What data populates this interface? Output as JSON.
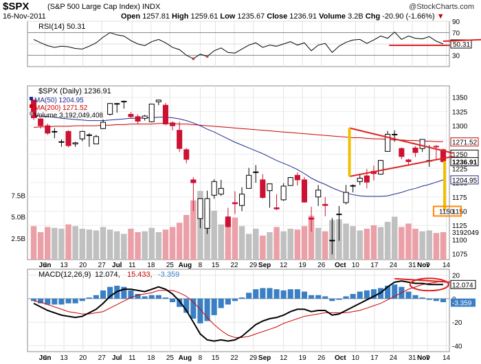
{
  "header": {
    "ticker": "$SPX",
    "name": "(S&P 500 Large Cap Index) INDX",
    "date": "16-Nov-2011",
    "source": "@StockCharts.com",
    "open_label": "Open",
    "open": "1257.81",
    "high_label": "High",
    "high": "1259.61",
    "low_label": "Low",
    "low": "1235.67",
    "close_label": "Close",
    "close": "1236.91",
    "volume_label": "Volume",
    "volume": "3.2B",
    "chg_label": "Chg",
    "chg": "-20.90 (-1.66%)",
    "chg_arrow": "▼"
  },
  "colors": {
    "up_candle": "#ffffff",
    "down_candle": "#cc1133",
    "candle_outline": "#000000",
    "ma50": "#1c2a8c",
    "ma200": "#cc0000",
    "volume_up": "#c0c0c0",
    "volume_down": "#eba0a8",
    "macd_line": "#000000",
    "signal_line": "#cc0000",
    "histogram": "#3a7fc4",
    "annotation_red": "#e02020",
    "annotation_yellow": "#f0c000",
    "annotation_orange": "#ff8800"
  },
  "chart_data": [
    {
      "type": "line",
      "panel": "rsi",
      "legend": "RSI(14) 50.31",
      "ylim": [
        10,
        90
      ],
      "y_ticks": [
        "90",
        "70",
        "50",
        "30"
      ],
      "tag": "50.31",
      "x": [
        "Jun 1",
        "Jun 3",
        "Jun 7",
        "Jun 9",
        "Jun 13",
        "Jun 15",
        "Jun 17",
        "Jun 21",
        "Jun 23",
        "Jun 27",
        "Jun 29",
        "Jul 1",
        "Jul 6",
        "Jul 8",
        "Jul 12",
        "Jul 14",
        "Jul 18",
        "Jul 20",
        "Jul 22",
        "Jul 26",
        "Jul 28",
        "Aug 1",
        "Aug 3",
        "Aug 5",
        "Aug 9",
        "Aug 11",
        "Aug 15",
        "Aug 17",
        "Aug 19",
        "Aug 23",
        "Aug 25",
        "Aug 29",
        "Aug 31",
        "Sep 2",
        "Sep 7",
        "Sep 9",
        "Sep 13",
        "Sep 15",
        "Sep 19",
        "Sep 21",
        "Sep 23",
        "Sep 27",
        "Sep 29",
        "Oct 3",
        "Oct 5",
        "Oct 7",
        "Oct 11",
        "Oct 13",
        "Oct 17",
        "Oct 19",
        "Oct 21",
        "Oct 25",
        "Oct 27",
        "Oct 31",
        "Nov 2",
        "Nov 4",
        "Nov 8",
        "Nov 10",
        "Nov 14",
        "Nov 16"
      ],
      "series": [
        {
          "values": [
            58,
            52,
            47,
            44,
            46,
            45,
            42,
            41,
            46,
            52,
            62,
            70,
            66,
            64,
            56,
            50,
            47,
            54,
            58,
            52,
            44,
            40,
            30,
            24,
            32,
            28,
            38,
            43,
            35,
            34,
            41,
            48,
            52,
            44,
            48,
            46,
            50,
            54,
            48,
            52,
            38,
            48,
            51,
            35,
            46,
            53,
            57,
            58,
            51,
            57,
            64,
            60,
            71,
            58,
            64,
            60,
            59,
            63,
            55,
            50
          ]
        }
      ]
    },
    {
      "type": "candlestick",
      "panel": "price",
      "legend": [
        "$SPX (Daily) 1236.91",
        "MA(50) 1204.95",
        "MA(200) 1271.52",
        "Volume 3,192,049,408"
      ],
      "ylim": [
        1065,
        1370
      ],
      "y_ticks": [
        "1350",
        "1325",
        "1300",
        "1275",
        "1250",
        "1225",
        "1200",
        "1175",
        "1150",
        "1125",
        "1100",
        "1075"
      ],
      "volume_ticks": [
        "7.5B",
        "5.0B",
        "2.5B"
      ],
      "tags": {
        "ma200": "1271.52",
        "close": "1236.91",
        "ma50": "1204.95",
        "target": "1150",
        "c1250": "1250",
        "vol": "3192049"
      },
      "x": [
        "Jun 1",
        "Jun 3",
        "Jun 7",
        "Jun 9",
        "Jun 13",
        "Jun 15",
        "Jun 17",
        "Jun 21",
        "Jun 23",
        "Jun 27",
        "Jun 29",
        "Jul 1",
        "Jul 6",
        "Jul 8",
        "Jul 12",
        "Jul 14",
        "Jul 18",
        "Jul 20",
        "Jul 22",
        "Jul 26",
        "Jul 28",
        "Aug 1",
        "Aug 3",
        "Aug 5",
        "Aug 9",
        "Aug 11",
        "Aug 15",
        "Aug 17",
        "Aug 19",
        "Aug 23",
        "Aug 25",
        "Aug 29",
        "Aug 31",
        "Sep 2",
        "Sep 7",
        "Sep 9",
        "Sep 13",
        "Sep 15",
        "Sep 19",
        "Sep 21",
        "Sep 23",
        "Sep 27",
        "Sep 29",
        "Oct 3",
        "Oct 5",
        "Oct 7",
        "Oct 11",
        "Oct 13",
        "Oct 17",
        "Oct 19",
        "Oct 21",
        "Oct 25",
        "Oct 27",
        "Oct 31",
        "Nov 2",
        "Nov 4",
        "Nov 8",
        "Nov 10",
        "Nov 14",
        "Nov 16"
      ],
      "open": [
        1345,
        1312,
        1300,
        1290,
        1272,
        1290,
        1268,
        1277,
        1283,
        1268,
        1295,
        1320,
        1338,
        1343,
        1320,
        1316,
        1313,
        1307,
        1342,
        1336,
        1305,
        1292,
        1258,
        1205,
        1137,
        1120,
        1178,
        1180,
        1140,
        1165,
        1160,
        1190,
        1218,
        1205,
        1186,
        1156,
        1170,
        1195,
        1213,
        1205,
        1138,
        1175,
        1162,
        1099,
        1145,
        1165,
        1194,
        1202,
        1212,
        1220,
        1215,
        1255,
        1284,
        1260,
        1240,
        1261,
        1260,
        1239,
        1264,
        1258
      ],
      "high": [
        1346,
        1313,
        1304,
        1296,
        1276,
        1292,
        1272,
        1291,
        1287,
        1284,
        1311,
        1340,
        1340,
        1344,
        1324,
        1320,
        1319,
        1338,
        1346,
        1340,
        1308,
        1307,
        1261,
        1210,
        1172,
        1186,
        1206,
        1205,
        1156,
        1185,
        1192,
        1226,
        1231,
        1215,
        1198,
        1180,
        1199,
        1210,
        1218,
        1210,
        1158,
        1196,
        1175,
        1138,
        1159,
        1196,
        1197,
        1216,
        1224,
        1230,
        1240,
        1291,
        1292,
        1262,
        1242,
        1264,
        1276,
        1266,
        1266,
        1260
      ],
      "low": [
        1310,
        1295,
        1284,
        1278,
        1263,
        1262,
        1263,
        1273,
        1263,
        1268,
        1294,
        1318,
        1323,
        1330,
        1313,
        1303,
        1309,
        1306,
        1336,
        1301,
        1292,
        1254,
        1234,
        1150,
        1120,
        1110,
        1172,
        1177,
        1121,
        1145,
        1150,
        1190,
        1200,
        1172,
        1156,
        1152,
        1168,
        1195,
        1195,
        1165,
        1114,
        1159,
        1141,
        1074,
        1098,
        1162,
        1183,
        1196,
        1190,
        1204,
        1214,
        1255,
        1272,
        1241,
        1230,
        1245,
        1254,
        1228,
        1241,
        1235
      ],
      "close": [
        1314,
        1300,
        1287,
        1290,
        1272,
        1265,
        1270,
        1290,
        1284,
        1281,
        1306,
        1339,
        1339,
        1343,
        1316,
        1308,
        1317,
        1338,
        1345,
        1303,
        1300,
        1260,
        1241,
        1200,
        1172,
        1172,
        1202,
        1190,
        1123,
        1163,
        1180,
        1213,
        1219,
        1174,
        1198,
        1154,
        1194,
        1209,
        1205,
        1166,
        1136,
        1187,
        1160,
        1099,
        1145,
        1183,
        1195,
        1208,
        1201,
        1216,
        1239,
        1285,
        1285,
        1246,
        1237,
        1253,
        1276,
        1239,
        1263,
        1237
      ],
      "volume": [
        3.9,
        3.2,
        3.8,
        3.7,
        3.6,
        4.1,
        3.9,
        3.6,
        3.5,
        3.4,
        3.8,
        3.5,
        3.3,
        3.0,
        3.6,
        3.2,
        3.3,
        3.7,
        3.2,
        3.5,
        3.8,
        4.3,
        5.2,
        6.9,
        8.0,
        6.1,
        5.7,
        4.1,
        4.6,
        4.9,
        3.9,
        3.0,
        3.6,
        2.8,
        3.2,
        3.8,
        3.3,
        3.6,
        3.5,
        3.9,
        5.1,
        3.7,
        3.3,
        4.6,
        4.7,
        4.2,
        3.9,
        3.4,
        3.6,
        4.0,
        3.8,
        4.4,
        5.0,
        3.8,
        4.2,
        3.6,
        3.3,
        3.4,
        3.1,
        3.2
      ],
      "ma50": [
        1318,
        1317,
        1316,
        1315,
        1313,
        1312,
        1311,
        1310,
        1309,
        1309,
        1309,
        1310,
        1311,
        1312,
        1313,
        1313,
        1314,
        1314,
        1315,
        1315,
        1314,
        1312,
        1309,
        1305,
        1300,
        1294,
        1289,
        1283,
        1277,
        1271,
        1266,
        1261,
        1256,
        1251,
        1245,
        1239,
        1234,
        1229,
        1223,
        1216,
        1208,
        1202,
        1197,
        1191,
        1186,
        1182,
        1179,
        1177,
        1176,
        1176,
        1176,
        1177,
        1180,
        1183,
        1187,
        1190,
        1194,
        1197,
        1201,
        1205
      ],
      "ma200": [
        1297,
        1298,
        1298,
        1299,
        1299,
        1299,
        1300,
        1300,
        1300,
        1300,
        1301,
        1301,
        1302,
        1302,
        1303,
        1303,
        1303,
        1303,
        1304,
        1304,
        1304,
        1303,
        1303,
        1302,
        1301,
        1300,
        1299,
        1298,
        1297,
        1296,
        1295,
        1294,
        1293,
        1292,
        1291,
        1290,
        1289,
        1288,
        1287,
        1286,
        1285,
        1284,
        1283,
        1282,
        1281,
        1280,
        1279,
        1279,
        1278,
        1277,
        1277,
        1276,
        1275,
        1275,
        1274,
        1274,
        1273,
        1273,
        1272,
        1272
      ]
    },
    {
      "type": "line",
      "panel": "macd",
      "legend": [
        "MACD(12,26,9)",
        "12.074",
        "15.433",
        "-3.359"
      ],
      "ylim": [
        -45,
        25
      ],
      "y_ticks": [
        "20",
        "0",
        "-20",
        "-40"
      ],
      "tags": {
        "macd": "12.074",
        "hist": "-3.359"
      },
      "x": [
        "Jun 1",
        "Jun 3",
        "Jun 7",
        "Jun 9",
        "Jun 13",
        "Jun 15",
        "Jun 17",
        "Jun 21",
        "Jun 23",
        "Jun 27",
        "Jun 29",
        "Jul 1",
        "Jul 6",
        "Jul 8",
        "Jul 12",
        "Jul 14",
        "Jul 18",
        "Jul 20",
        "Jul 22",
        "Jul 26",
        "Jul 28",
        "Aug 1",
        "Aug 3",
        "Aug 5",
        "Aug 9",
        "Aug 11",
        "Aug 15",
        "Aug 17",
        "Aug 19",
        "Aug 23",
        "Aug 25",
        "Aug 29",
        "Aug 31",
        "Sep 2",
        "Sep 7",
        "Sep 9",
        "Sep 13",
        "Sep 15",
        "Sep 19",
        "Sep 21",
        "Sep 23",
        "Sep 27",
        "Sep 29",
        "Oct 3",
        "Oct 5",
        "Oct 7",
        "Oct 11",
        "Oct 13",
        "Oct 17",
        "Oct 19",
        "Oct 21",
        "Oct 25",
        "Oct 27",
        "Oct 31",
        "Nov 2",
        "Nov 4",
        "Nov 8",
        "Nov 10",
        "Nov 14",
        "Nov 16"
      ],
      "series": [
        {
          "name": "MACD",
          "values": [
            -4,
            -7,
            -10,
            -12,
            -14,
            -15,
            -16,
            -15,
            -12,
            -9,
            -4,
            2,
            6,
            8,
            8,
            7,
            6,
            8,
            10,
            8,
            4,
            -2,
            -10,
            -20,
            -30,
            -35,
            -36,
            -35,
            -36,
            -35,
            -32,
            -27,
            -22,
            -19,
            -17,
            -16,
            -14,
            -11,
            -9,
            -9,
            -11,
            -10,
            -10,
            -14,
            -13,
            -10,
            -7,
            -4,
            -1,
            2,
            5,
            10,
            14,
            15,
            14,
            13,
            13,
            12,
            12,
            12
          ]
        },
        {
          "name": "Signal",
          "values": [
            -2,
            -3,
            -5,
            -7,
            -9,
            -11,
            -12,
            -13,
            -13,
            -12,
            -11,
            -8,
            -5,
            -2,
            1,
            3,
            4,
            5,
            7,
            7,
            7,
            5,
            2,
            -3,
            -9,
            -16,
            -22,
            -27,
            -31,
            -33,
            -33,
            -32,
            -30,
            -28,
            -26,
            -24,
            -21,
            -19,
            -17,
            -15,
            -14,
            -13,
            -12,
            -12,
            -12,
            -12,
            -11,
            -10,
            -8,
            -6,
            -4,
            -1,
            2,
            5,
            8,
            10,
            12,
            13,
            14,
            15
          ]
        },
        {
          "name": "Histogram",
          "values": [
            -2,
            -4,
            -5,
            -5,
            -5,
            -4,
            -4,
            -2,
            1,
            3,
            7,
            10,
            11,
            10,
            7,
            4,
            2,
            3,
            3,
            1,
            -3,
            -7,
            -12,
            -17,
            -21,
            -19,
            -14,
            -8,
            -5,
            -2,
            1,
            5,
            8,
            9,
            9,
            8,
            7,
            8,
            8,
            6,
            3,
            3,
            2,
            -2,
            -1,
            2,
            4,
            6,
            7,
            8,
            9,
            11,
            12,
            10,
            6,
            3,
            1,
            -1,
            -2,
            -3
          ]
        }
      ]
    }
  ],
  "x_axis": {
    "labels": [
      {
        "text": "Jun",
        "i": 3,
        "month": true
      },
      {
        "text": "6",
        "i": 3
      },
      {
        "text": "13",
        "i": 8
      },
      {
        "text": "20",
        "i": 13
      },
      {
        "text": "27",
        "i": 18
      },
      {
        "text": "Jul",
        "i": 22,
        "month": true
      },
      {
        "text": "11",
        "i": 26
      },
      {
        "text": "18",
        "i": 31
      },
      {
        "text": "25",
        "i": 36
      },
      {
        "text": "Aug",
        "i": 40,
        "month": true
      },
      {
        "text": "8",
        "i": 44
      },
      {
        "text": "15",
        "i": 48
      },
      {
        "text": "22",
        "i": 53
      },
      {
        "text": "29",
        "i": 58
      },
      {
        "text": "Sep",
        "i": 61,
        "month": true
      },
      {
        "text": "12",
        "i": 66
      },
      {
        "text": "19",
        "i": 71
      },
      {
        "text": "26",
        "i": 76
      },
      {
        "text": "Oct",
        "i": 81,
        "month": true
      },
      {
        "text": "10",
        "i": 85
      },
      {
        "text": "17",
        "i": 90
      },
      {
        "text": "24",
        "i": 95
      },
      {
        "text": "31",
        "i": 100
      },
      {
        "text": "Nov",
        "i": 103,
        "month": true
      },
      {
        "text": "7",
        "i": 104
      },
      {
        "text": "14",
        "i": 109
      }
    ]
  }
}
